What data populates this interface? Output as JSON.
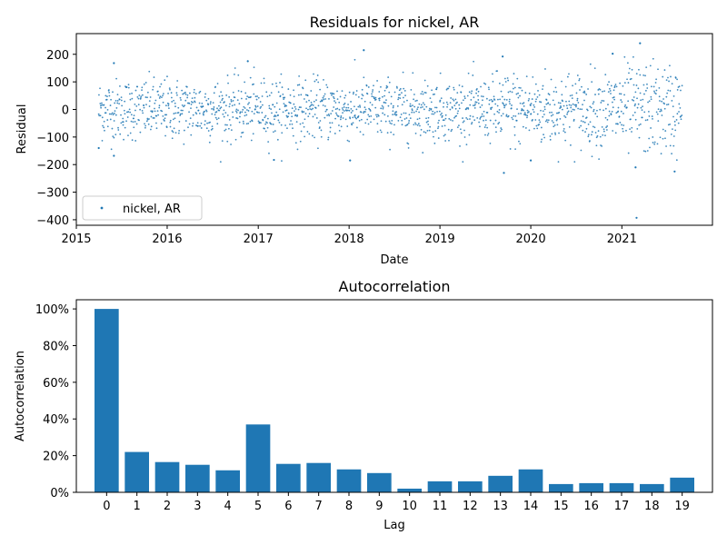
{
  "chart_data": [
    {
      "type": "scatter",
      "title": "Residuals for nickel, AR",
      "xlabel": "Date",
      "ylabel": "Residual",
      "x_range": [
        "2015-01-01",
        "2021-12-31"
      ],
      "ylim": [
        -420,
        275
      ],
      "x_ticks": [
        "2015",
        "2016",
        "2017",
        "2018",
        "2019",
        "2020",
        "2021"
      ],
      "y_ticks": [
        -400,
        -300,
        -200,
        -100,
        0,
        100,
        200
      ],
      "grid": false,
      "legend": {
        "placement": "lower-left",
        "entries": [
          "nickel, AR"
        ]
      },
      "color": "#1f77b4",
      "series": [
        {
          "name": "nickel, AR",
          "date_range": [
            "2015-04-01",
            "2021-08-31"
          ],
          "typical_spread": 55,
          "notable_points": [
            {
              "x": "2021-03-01",
              "y": -393
            },
            {
              "x": "2021-03-15",
              "y": 240
            },
            {
              "x": "2018-03-01",
              "y": 215
            },
            {
              "x": "2019-09-15",
              "y": -230
            },
            {
              "x": "2021-08-01",
              "y": -225
            },
            {
              "x": "2020-11-25",
              "y": 202
            },
            {
              "x": "2019-09-10",
              "y": 192
            },
            {
              "x": "2021-02-25",
              "y": -210
            },
            {
              "x": "2020-01-01",
              "y": -185
            },
            {
              "x": "2017-03-05",
              "y": -183
            },
            {
              "x": "2018-01-05",
              "y": -185
            },
            {
              "x": "2016-11-20",
              "y": 175
            },
            {
              "x": "2015-06-01",
              "y": -168
            },
            {
              "x": "2015-06-01",
              "y": 168
            },
            {
              "x": "2015-04-01",
              "y": -140
            }
          ]
        }
      ]
    },
    {
      "type": "bar",
      "title": "Autocorrelation",
      "xlabel": "Lag",
      "ylabel": "Autocorrelation",
      "categories": [
        "0",
        "1",
        "2",
        "3",
        "4",
        "5",
        "6",
        "7",
        "8",
        "9",
        "10",
        "11",
        "12",
        "13",
        "14",
        "15",
        "16",
        "17",
        "18",
        "19"
      ],
      "values": [
        1.0,
        0.22,
        0.165,
        0.15,
        0.12,
        0.37,
        0.155,
        0.16,
        0.125,
        0.105,
        0.02,
        0.06,
        0.06,
        0.09,
        0.125,
        0.045,
        0.05,
        0.05,
        0.045,
        0.08
      ],
      "ylim": [
        0,
        1.05
      ],
      "y_ticks": [
        "0%",
        "20%",
        "40%",
        "60%",
        "80%",
        "100%"
      ],
      "grid": false,
      "color": "#1f77b4"
    }
  ]
}
